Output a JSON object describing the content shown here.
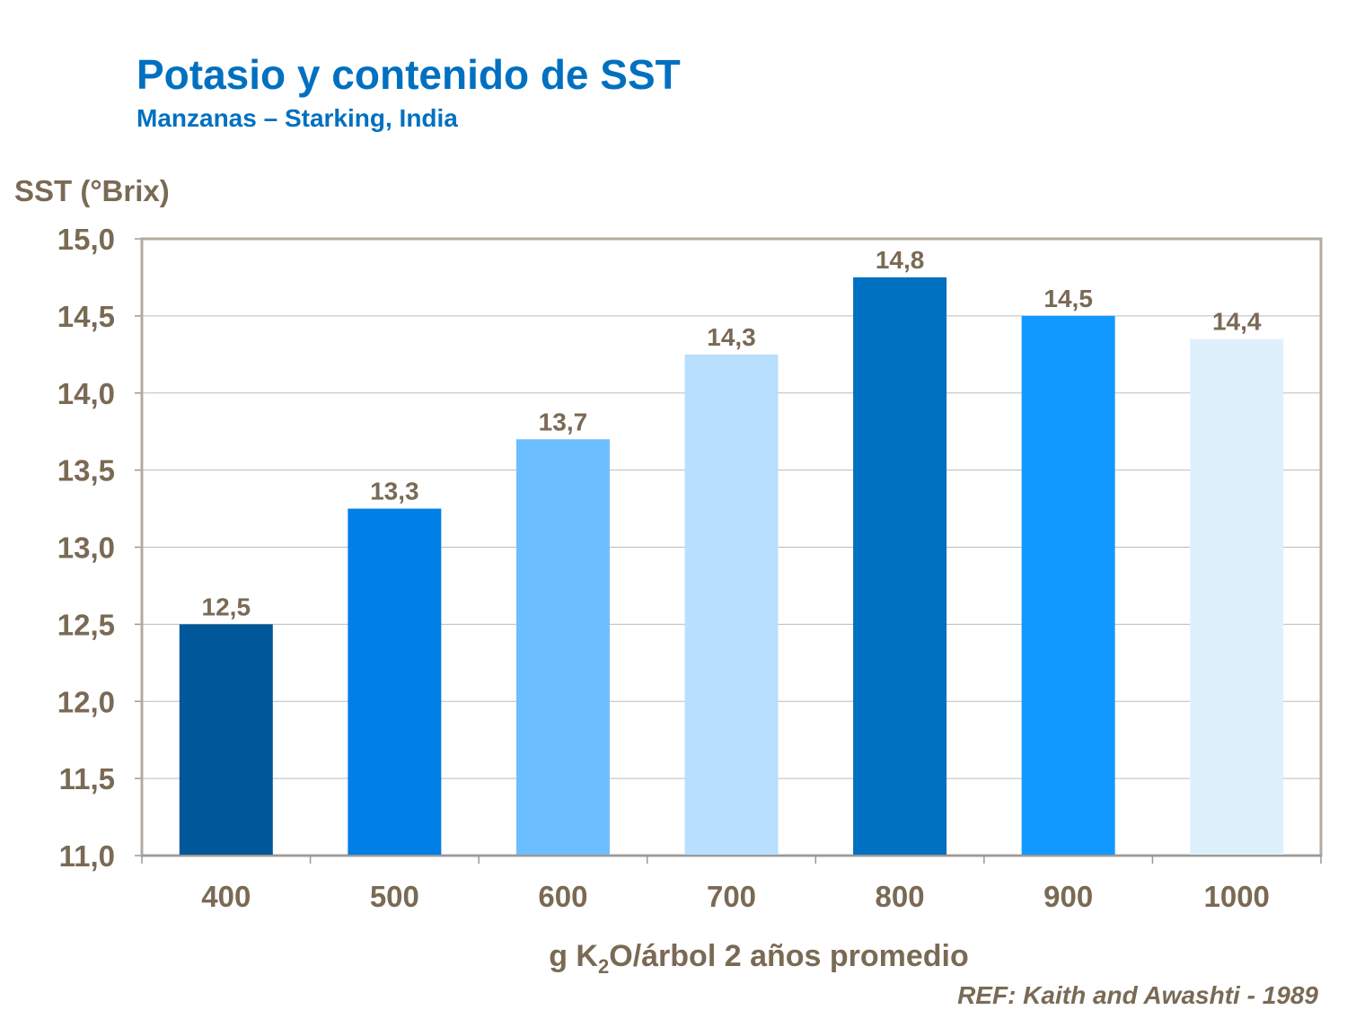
{
  "chart_data": {
    "type": "bar",
    "title": "Potasio y contenido de SST",
    "subtitle": "Manzanas – Starking, India",
    "ylabel": "SST (°Brix)",
    "xlabel_parts": [
      "g K",
      "2",
      "O/árbol 2 años promedio"
    ],
    "reference": "REF:  Kaith and Awashti - 1989",
    "categories": [
      "400",
      "500",
      "600",
      "700",
      "800",
      "900",
      "1000"
    ],
    "values": [
      12.5,
      13.25,
      13.7,
      14.25,
      14.75,
      14.5,
      14.35
    ],
    "data_labels": [
      "12,5",
      "13,3",
      "13,7",
      "14,3",
      "14,8",
      "14,5",
      "14,4"
    ],
    "bar_colors": [
      "#00579a",
      "#0080e6",
      "#6bbeff",
      "#b9dfff",
      "#0070c0",
      "#1199ff",
      "#dff0fd"
    ],
    "ylim": [
      11.0,
      15.0
    ],
    "yticks": [
      11.0,
      11.5,
      12.0,
      12.5,
      13.0,
      13.5,
      14.0,
      14.5,
      15.0
    ],
    "ytick_labels": [
      "11,0",
      "11,5",
      "12,0",
      "12,5",
      "13,0",
      "13,5",
      "14,0",
      "14,5",
      "15,0"
    ],
    "grid": true,
    "legend": "none"
  }
}
